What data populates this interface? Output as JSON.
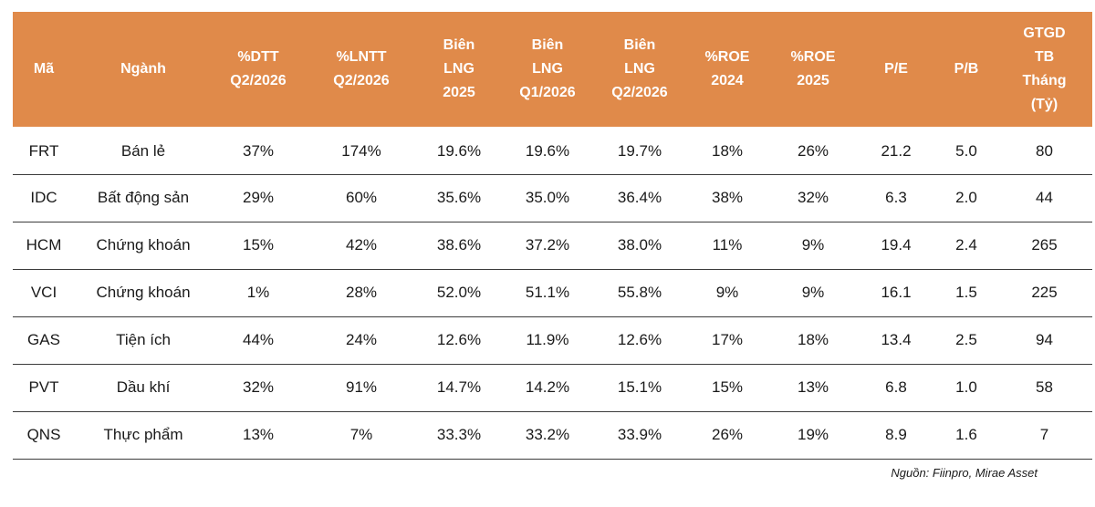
{
  "table": {
    "headers": [
      "Mã",
      "Ngành",
      "%DTT Q2/2026",
      "%LNTT Q2/2026",
      "Biên LNG 2025",
      "Biên LNG Q1/2026",
      "Biên LNG Q2/2026",
      "%ROE 2024",
      "%ROE 2025",
      "P/E",
      "P/B",
      "GTGD TB Tháng (Tỷ)"
    ],
    "rows": [
      [
        "FRT",
        "Bán lẻ",
        "37%",
        "174%",
        "19.6%",
        "19.6%",
        "19.7%",
        "18%",
        "26%",
        "21.2",
        "5.0",
        "80"
      ],
      [
        "IDC",
        "Bất động sản",
        "29%",
        "60%",
        "35.6%",
        "35.0%",
        "36.4%",
        "38%",
        "32%",
        "6.3",
        "2.0",
        "44"
      ],
      [
        "HCM",
        "Chứng khoán",
        "15%",
        "42%",
        "38.6%",
        "37.2%",
        "38.0%",
        "11%",
        "9%",
        "19.4",
        "2.4",
        "265"
      ],
      [
        "VCI",
        "Chứng khoán",
        "1%",
        "28%",
        "52.0%",
        "51.1%",
        "55.8%",
        "9%",
        "9%",
        "16.1",
        "1.5",
        "225"
      ],
      [
        "GAS",
        "Tiện ích",
        "44%",
        "24%",
        "12.6%",
        "11.9%",
        "12.6%",
        "17%",
        "18%",
        "13.4",
        "2.5",
        "94"
      ],
      [
        "PVT",
        "Dầu khí",
        "32%",
        "91%",
        "14.7%",
        "14.2%",
        "15.1%",
        "15%",
        "13%",
        "6.8",
        "1.0",
        "58"
      ],
      [
        "QNS",
        "Thực phẩm",
        "13%",
        "7%",
        "33.3%",
        "33.2%",
        "33.9%",
        "26%",
        "19%",
        "8.9",
        "1.6",
        "7"
      ]
    ]
  },
  "source": "Nguồn: Fiinpro, Mirae Asset",
  "colors": {
    "header_bg": "#e08a4a",
    "header_text": "#ffffff",
    "row_border": "#3c3c3c"
  }
}
